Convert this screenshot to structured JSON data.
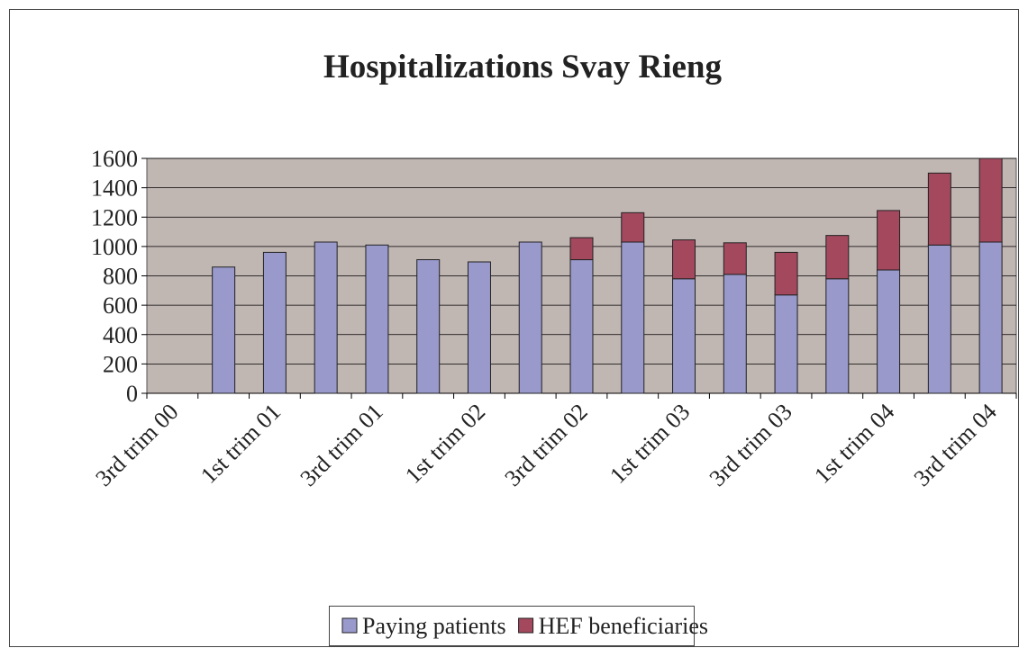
{
  "chart_data": {
    "type": "stacked-bar",
    "title": "Hospitalizations Svay Rieng",
    "categories": [
      "3rd trim 00",
      null,
      "1st trim 01",
      null,
      "3rd trim 01",
      null,
      "1st trim 02",
      null,
      "3rd trim 02",
      null,
      "1st trim 03",
      null,
      "3rd trim 03",
      null,
      "1st trim 04",
      null,
      "3rd trim 04"
    ],
    "series": [
      {
        "name": "Paying patients",
        "color": "#9999cc",
        "values": [
          null,
          860,
          960,
          1030,
          1010,
          910,
          895,
          1030,
          910,
          1030,
          780,
          810,
          670,
          780,
          840,
          1010,
          1030
        ]
      },
      {
        "name": "HEF beneficiaries",
        "color": "#a4485e",
        "values": [
          null,
          null,
          null,
          null,
          null,
          null,
          null,
          null,
          150,
          200,
          265,
          215,
          290,
          295,
          405,
          490,
          570
        ]
      }
    ],
    "ylim": [
      0,
      1600
    ],
    "yticks": [
      0,
      200,
      400,
      600,
      800,
      1000,
      1200,
      1400,
      1600
    ],
    "grid": true,
    "legend": "bottom"
  }
}
